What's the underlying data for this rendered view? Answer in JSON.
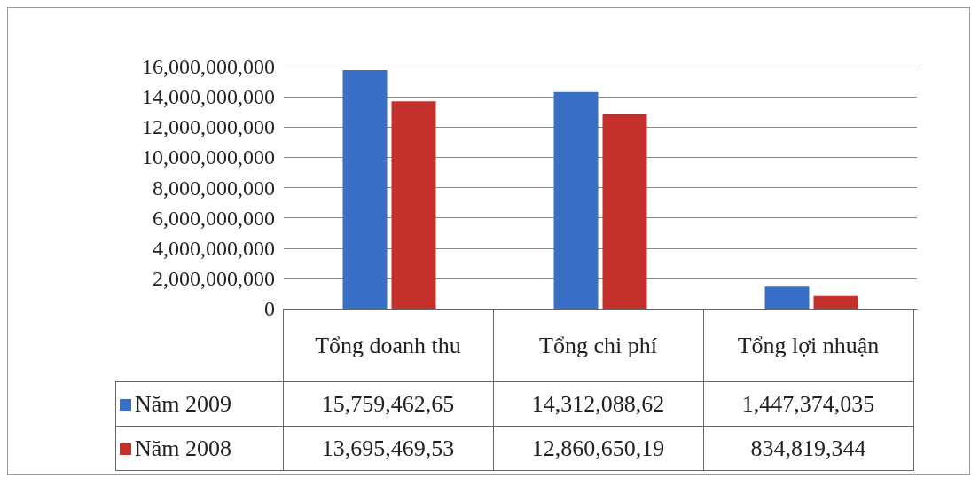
{
  "chart_data": {
    "type": "bar",
    "categories": [
      "Tổng doanh thu",
      "Tổng chi phí",
      "Tổng lợi nhuận"
    ],
    "series": [
      {
        "name": "Năm 2009",
        "color": "#3a6fc8",
        "values": [
          15760000000,
          14310000000,
          1447374035
        ],
        "value_labels": [
          "15,759,462,65",
          "14,312,088,62",
          "1,447,374,035"
        ]
      },
      {
        "name": "Năm 2008",
        "color": "#c4302b",
        "values": [
          13700000000,
          12860000000,
          834819344
        ],
        "value_labels": [
          "13,695,469,53",
          "12,860,650,19",
          "834,819,344"
        ]
      }
    ],
    "ylim": [
      0,
      16000000000
    ],
    "yticks": [
      0,
      {
        "value": 2000000000,
        "label": "2,000,000,000"
      },
      {
        "value": 4000000000,
        "label": "4,000,000,000"
      },
      {
        "value": 6000000000,
        "label": "6,000,000,000"
      },
      {
        "value": 8000000000,
        "label": "8,000,000,000"
      },
      {
        "value": 10000000000,
        "label": "10,000,000,000"
      },
      {
        "value": 12000000000,
        "label": "12,000,000,000"
      },
      {
        "value": 14000000000,
        "label": "14,000,000,000"
      },
      {
        "value": 16000000000,
        "label": "16,000,000,000"
      }
    ],
    "grid": "y",
    "legend": "bottom left"
  }
}
